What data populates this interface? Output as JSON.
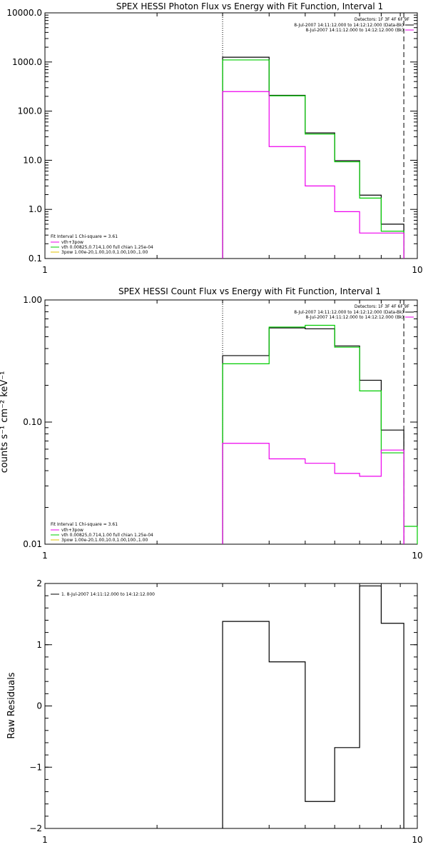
{
  "chart_data": [
    {
      "type": "line",
      "title": "SPEX HESSI Photon Flux vs Energy with Fit Function, Interval 1",
      "xscale": "log",
      "yscale": "log",
      "xlim": [
        1,
        10
      ],
      "ylim": [
        0.1,
        10000
      ],
      "xticks": [
        {
          "v": 1,
          "label": "1"
        },
        {
          "v": 10,
          "label": "10"
        }
      ],
      "yticks": [
        {
          "v": 10000,
          "label": "10000.0"
        },
        {
          "v": 1000,
          "label": "1000.0"
        },
        {
          "v": 100,
          "label": "100.0"
        },
        {
          "v": 10,
          "label": "10.0"
        },
        {
          "v": 1,
          "label": "1.0"
        },
        {
          "v": 0.1,
          "label": "0.1"
        }
      ],
      "vlines": [
        {
          "x": 3.0,
          "style": "dotted"
        },
        {
          "x": 9.2,
          "style": "dashed"
        }
      ],
      "series": [
        {
          "color": "#000000",
          "edges": [
            3.0,
            4.0,
            5.0,
            6.0,
            7.0,
            8.0,
            9.2
          ],
          "values": [
            1250,
            210,
            36,
            9.8,
            1.95,
            0.5
          ]
        },
        {
          "color": "#00cc00",
          "edges": [
            3.0,
            4.0,
            5.0,
            6.0,
            7.0,
            8.0,
            9.2
          ],
          "values": [
            1100,
            205,
            34,
            9.3,
            1.7,
            0.36
          ]
        },
        {
          "color": "#ee00ee",
          "edges": [
            3.0,
            4.0,
            5.0,
            6.0,
            7.0,
            8.0,
            9.2
          ],
          "values": [
            250,
            19,
            3.0,
            0.9,
            0.33,
            0.33
          ]
        }
      ],
      "legend_right": [
        {
          "text": "Detectors: 1F 3F 4F 6F 9F",
          "color": null
        },
        {
          "text": "8-Jul-2007 14:11:12.000 to 14:12:12.000 (Data-Bk)",
          "color": "#000000"
        },
        {
          "text": "8-Jul-2007 14:11:12.000 to 14:12:12.000 (Bk)",
          "color": "#ee00ee"
        }
      ],
      "legend_left": [
        {
          "text": "Fit Interval  1    Chi-square = 3.61",
          "color": null
        },
        {
          "text": "vth+3pow",
          "color": "#ee00ee"
        },
        {
          "text": "vth 0.00825,0.714,1.00   full chian 1.25e-04",
          "color": "#00cc00"
        },
        {
          "text": "3pow 1.00e-20,1.00,10.0,1.00,100.,1.00",
          "color": "#e0c000"
        }
      ]
    },
    {
      "type": "line",
      "title": "SPEX HESSI Count Flux vs Energy with Fit Function, Interval 1",
      "ylabel": "counts s⁻¹ cm⁻² keV⁻¹",
      "xscale": "log",
      "yscale": "log",
      "xlim": [
        1,
        10
      ],
      "ylim": [
        0.01,
        1.0
      ],
      "xticks": [
        {
          "v": 1,
          "label": "1"
        },
        {
          "v": 10,
          "label": "10"
        }
      ],
      "yticks": [
        {
          "v": 1.0,
          "label": "1.00"
        },
        {
          "v": 0.1,
          "label": "0.10"
        },
        {
          "v": 0.01,
          "label": "0.01"
        }
      ],
      "vlines": [
        {
          "x": 3.0,
          "style": "dotted"
        },
        {
          "x": 9.2,
          "style": "dashed"
        }
      ],
      "series": [
        {
          "color": "#000000",
          "edges": [
            3.0,
            4.0,
            5.0,
            6.0,
            7.0,
            8.0,
            9.2
          ],
          "values": [
            0.35,
            0.59,
            0.58,
            0.42,
            0.22,
            0.086
          ]
        },
        {
          "color": "#00cc00",
          "edges": [
            3.0,
            4.0,
            5.0,
            6.0,
            7.0,
            8.0,
            9.2,
            10.0
          ],
          "values": [
            0.3,
            0.6,
            0.62,
            0.41,
            0.18,
            0.056,
            0.014
          ]
        },
        {
          "color": "#ee00ee",
          "edges": [
            3.0,
            4.0,
            5.0,
            6.0,
            7.0,
            8.0,
            9.2
          ],
          "values": [
            0.067,
            0.05,
            0.046,
            0.038,
            0.036,
            0.059
          ]
        }
      ],
      "legend_right": [
        {
          "text": "Detectors: 1F 3F 4F 6F 9F",
          "color": null
        },
        {
          "text": "8-Jul-2007 14:11:12.000 to 14:12:12.000 (Data-Bk)",
          "color": "#000000"
        },
        {
          "text": "8-Jul-2007 14:11:12.000 to 14:12:12.000 (Bk)",
          "color": "#ee00ee"
        }
      ],
      "legend_left": [
        {
          "text": "Fit Interval  1    Chi-square = 3.61",
          "color": null
        },
        {
          "text": "vth+3pow",
          "color": "#ee00ee"
        },
        {
          "text": "vth 0.00825,0.714,1.00   full chian 1.25e-04",
          "color": "#00cc00"
        },
        {
          "text": "3pow 1.00e-20,1.00,10.0,1.00,100.,1.00",
          "color": "#e0c000"
        }
      ]
    },
    {
      "type": "line",
      "ylabel": "Raw Residuals",
      "xscale": "log",
      "yscale": "linear",
      "xlim": [
        1,
        10
      ],
      "ylim": [
        -2,
        2
      ],
      "xticks": [
        {
          "v": 1,
          "label": "1"
        },
        {
          "v": 10,
          "label": "10"
        }
      ],
      "yticks": [
        {
          "v": 2,
          "label": "2"
        },
        {
          "v": 1,
          "label": "1"
        },
        {
          "v": 0,
          "label": "0"
        },
        {
          "v": -1,
          "label": "−1"
        },
        {
          "v": -2,
          "label": "−2"
        }
      ],
      "series": [
        {
          "color": "#000000",
          "edges": [
            3.0,
            4.0,
            5.0,
            6.0,
            7.0,
            8.0,
            9.2
          ],
          "values": [
            1.38,
            0.72,
            -1.56,
            -0.68,
            1.96,
            1.35
          ]
        }
      ],
      "legend_left": [
        {
          "text": "1.  8-Jul-2007 14:11:12.000 to 14:12:12.000",
          "color": "#000000"
        }
      ]
    }
  ]
}
